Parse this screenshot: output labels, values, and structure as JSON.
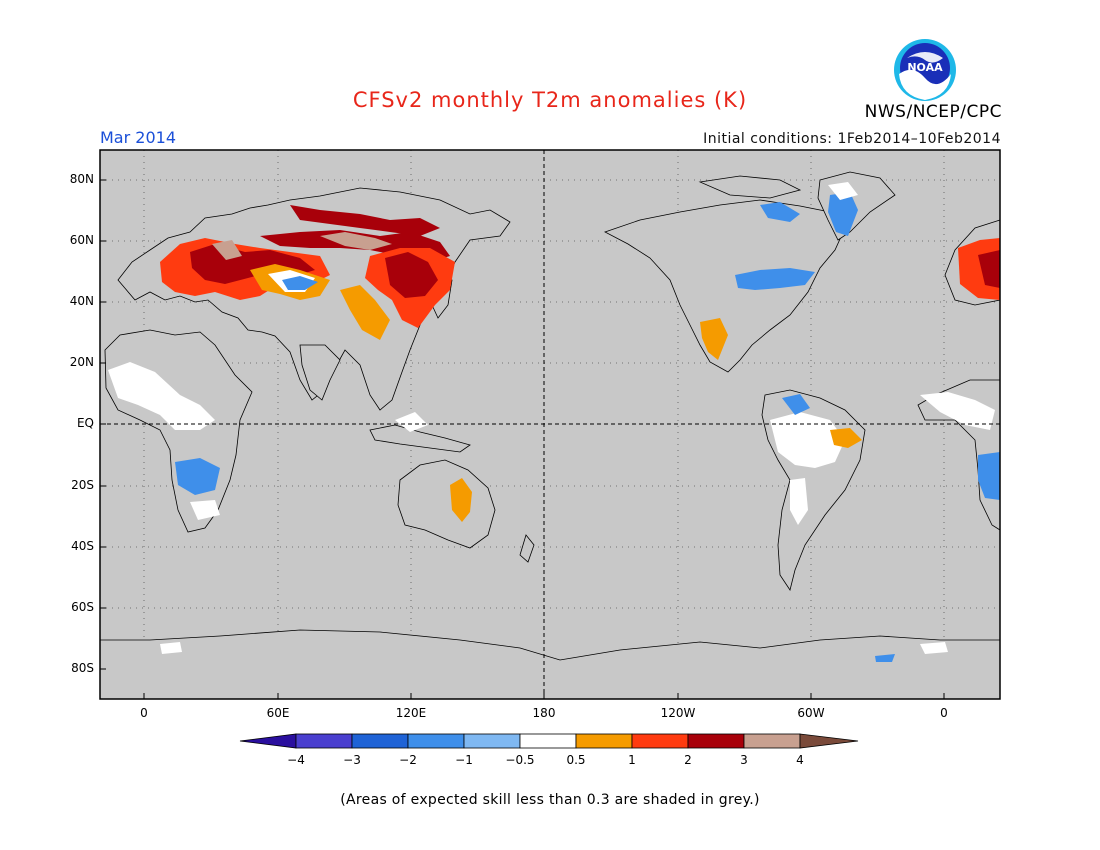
{
  "title": "CFSv2 monthly T2m anomalies (K)",
  "period": "Mar 2014",
  "initial_conditions": "Initial conditions: 1Feb2014–10Feb2014",
  "agency": "NWS/NCEP/CPC",
  "logo_text": "NOAA",
  "lat_labels": [
    "80N",
    "60N",
    "40N",
    "20N",
    "EQ",
    "20S",
    "40S",
    "60S",
    "80S"
  ],
  "lon_labels": [
    "0",
    "60E",
    "120E",
    "180",
    "120W",
    "60W",
    "0"
  ],
  "colorbar": {
    "labels": [
      "−4",
      "−3",
      "−2",
      "−1",
      "−0.5",
      "0.5",
      "1",
      "2",
      "3",
      "4"
    ],
    "colors": [
      "#2a0f9e",
      "#4a3fcf",
      "#1f63d6",
      "#3f8fea",
      "#7fb8f2",
      "#ffffff",
      "#f59b00",
      "#ff3b10",
      "#a8000a",
      "#c8a090",
      "#7a4a3a"
    ]
  },
  "colors": {
    "ocean_grey": "#c8c8c8",
    "coast": "#000000",
    "title_red": "#e8261a",
    "period_blue": "#1a4fd8"
  },
  "footnote": "(Areas of expected skill less than 0.3 are shaded in grey.)"
}
